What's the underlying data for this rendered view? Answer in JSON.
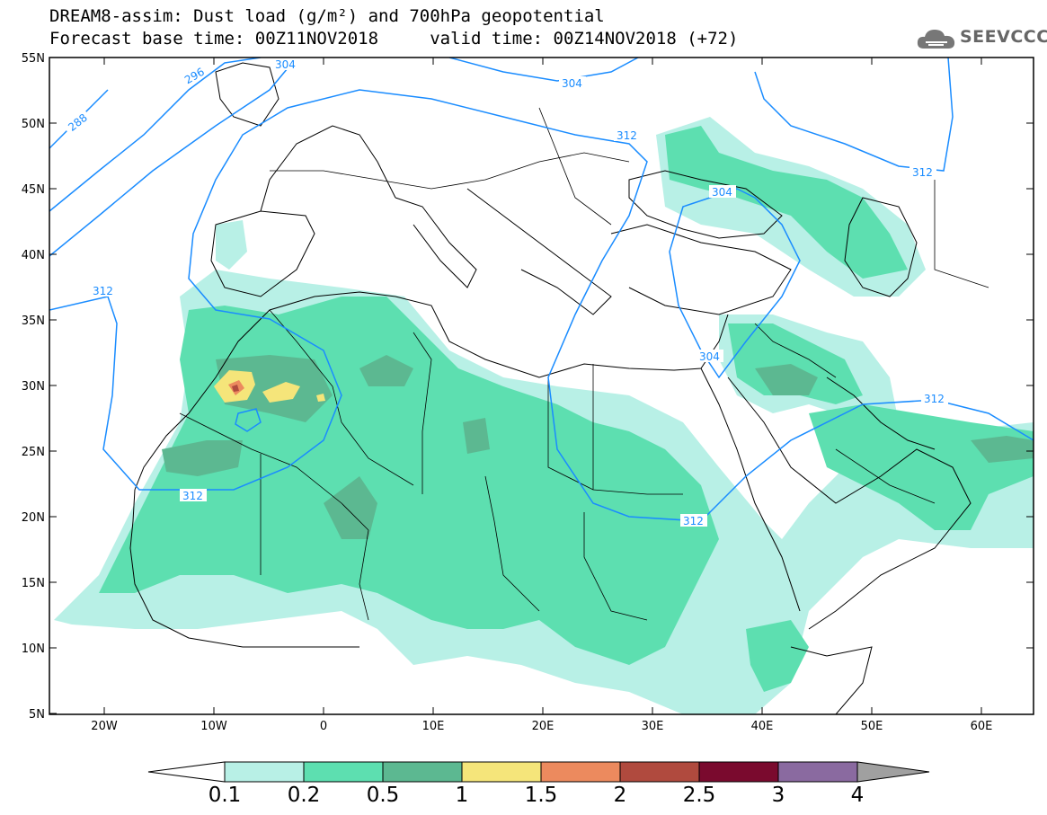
{
  "header": {
    "title_line1": "DREAM8-assim: Dust load (g/m²) and 700hPa geopotential",
    "title_line2": "Forecast base time: 00Z11NOV2018     valid time: 00Z14NOV2018 (+72)",
    "logo_text": "SEEVCCC",
    "logo_icon": "cloud-icon"
  },
  "axes": {
    "lat_labels": [
      "55N",
      "50N",
      "45N",
      "40N",
      "35N",
      "30N",
      "25N",
      "20N",
      "15N",
      "10N",
      "5N"
    ],
    "lon_labels": [
      "20W",
      "10W",
      "0",
      "10E",
      "20E",
      "30E",
      "40E",
      "50E",
      "60E"
    ]
  },
  "contours": {
    "color": "#1a8cff",
    "labels": [
      "288",
      "296",
      "304",
      "304",
      "312",
      "312",
      "312",
      "304",
      "304",
      "312",
      "312",
      "312"
    ]
  },
  "legend": {
    "labels": [
      "0.1",
      "0.2",
      "0.5",
      "1",
      "1.5",
      "2",
      "2.5",
      "3",
      "4"
    ],
    "colors": [
      "#b8f0e6",
      "#5ddfb0",
      "#5cb891",
      "#f5e57a",
      "#ec8a5e",
      "#b04a3e",
      "#7a0a2e",
      "#8a6aa0"
    ],
    "end_low_color": "#ffffff",
    "end_high_color": "#a0a0a0"
  }
}
